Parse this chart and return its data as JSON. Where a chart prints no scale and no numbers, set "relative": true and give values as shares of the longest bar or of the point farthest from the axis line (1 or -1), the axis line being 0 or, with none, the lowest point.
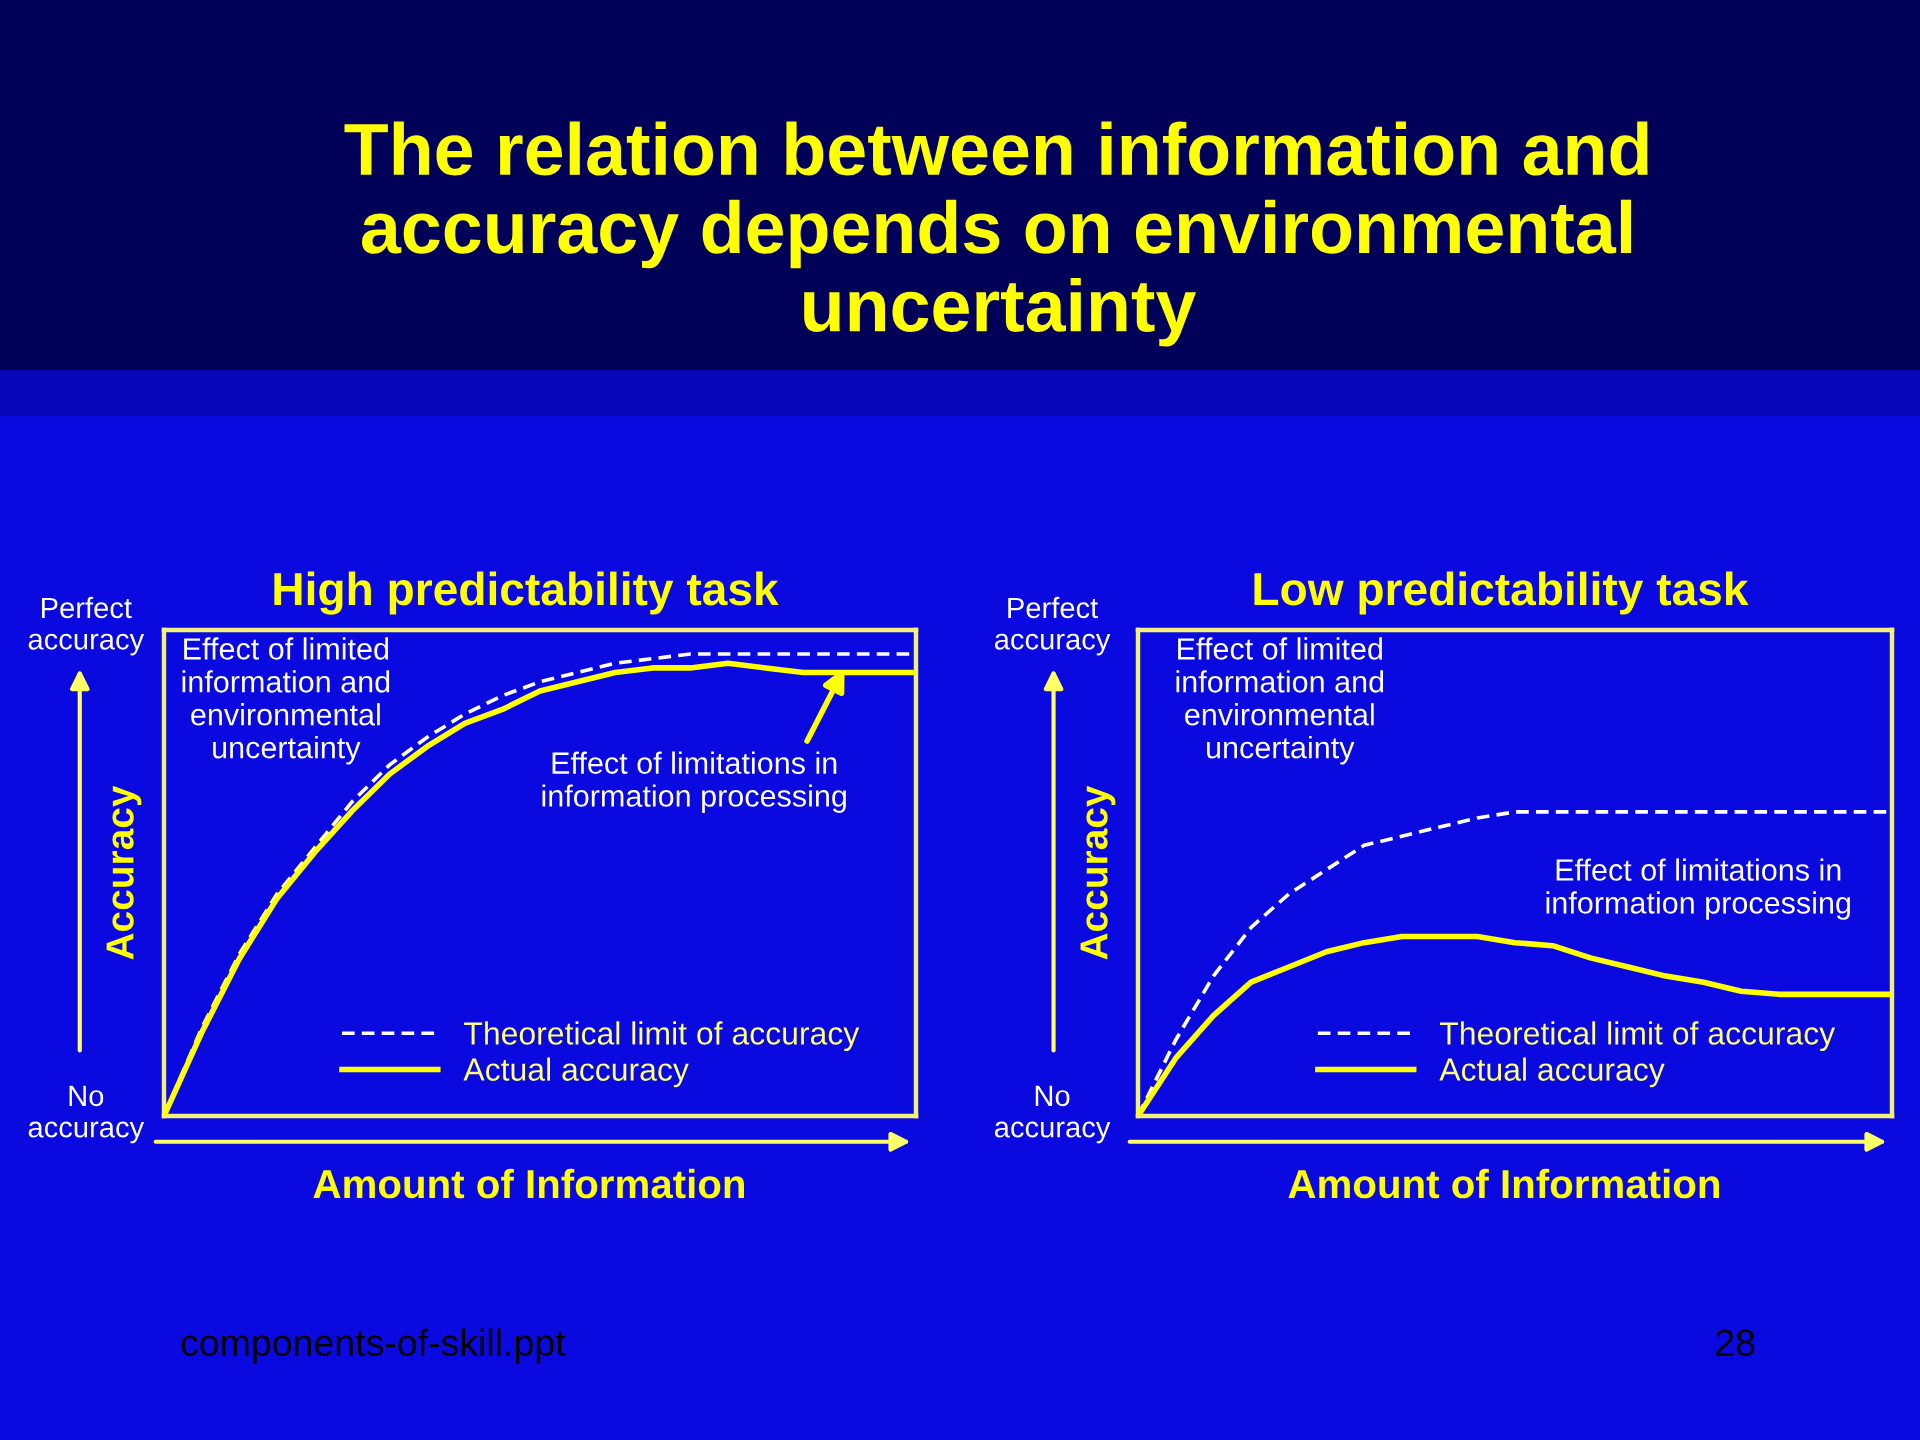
{
  "chart_data": [
    {
      "type": "other",
      "title": "The relation between information and\naccuracy depends on environmental\nuncertainty",
      "annotations": [
        "components-of-skill.ppt",
        "28"
      ]
    },
    {
      "type": "line",
      "title": "High predictability task",
      "xlabel": "Amount of Information",
      "ylabel": "Accuracy",
      "relative": true,
      "categories": [
        null,
        null,
        null,
        null,
        null,
        null,
        null,
        null,
        null,
        null,
        null,
        null,
        null,
        null,
        null,
        null,
        null,
        null,
        null,
        null,
        null
      ],
      "series": [
        {
          "name": "Theoretical limit of accuracy",
          "color": "#ffffff",
          "line_style": "dashed",
          "values": [
            0,
            0.19,
            0.35,
            0.48,
            0.58,
            0.68,
            0.76,
            0.82,
            0.87,
            0.91,
            0.94,
            0.96,
            0.98,
            0.99,
            1,
            1,
            1,
            1,
            1,
            1,
            1
          ]
        },
        {
          "name": "Actual accuracy",
          "color": "#ffff00",
          "line_style": "solid",
          "values": [
            0,
            0.18,
            0.34,
            0.47,
            0.57,
            0.66,
            0.74,
            0.8,
            0.85,
            0.88,
            0.92,
            0.94,
            0.96,
            0.97,
            0.97,
            0.98,
            0.97,
            0.96,
            0.96,
            0.96,
            0.96
          ]
        }
      ],
      "tick_labels": false,
      "legend": "bottom right",
      "annotations": [
        "Perfect\naccuracy",
        "No\naccuracy",
        "Effect of limited\ninformation and\nenvironmental\nuncertainty",
        {
          "text": "Effect of limitations in\ninformation processing",
          "y": 0.97
        }
      ]
    },
    {
      "type": "line",
      "title": "Low predictability task",
      "xlabel": "Amount of Information",
      "ylabel": "Accuracy",
      "relative": true,
      "categories": [
        null,
        null,
        null,
        null,
        null,
        null,
        null,
        null,
        null,
        null,
        null,
        null,
        null,
        null,
        null,
        null,
        null,
        null,
        null,
        null,
        null
      ],
      "series": [
        {
          "name": "Theoretical limit of accuracy",
          "color": "#ffffff",
          "line_style": "dashed",
          "values": [
            0,
            0.25,
            0.46,
            0.62,
            0.73,
            0.81,
            0.89,
            0.92,
            0.95,
            0.98,
            1,
            1,
            1,
            1,
            1,
            1,
            1,
            1,
            1,
            1,
            1
          ]
        },
        {
          "name": "Actual accuracy",
          "color": "#ffff00",
          "line_style": "solid",
          "values": [
            0,
            0.19,
            0.33,
            0.44,
            0.49,
            0.54,
            0.57,
            0.59,
            0.59,
            0.59,
            0.57,
            0.56,
            0.52,
            0.49,
            0.46,
            0.44,
            0.41,
            0.4,
            0.4,
            0.4,
            0.4
          ]
        }
      ],
      "tick_labels": false,
      "legend": "bottom right",
      "annotations": [
        "Perfect\naccuracy",
        "No\naccuracy",
        "Effect of limited\ninformation and\nenvironmental\nuncertainty",
        "Effect of limitations in\ninformation processing"
      ]
    }
  ]
}
